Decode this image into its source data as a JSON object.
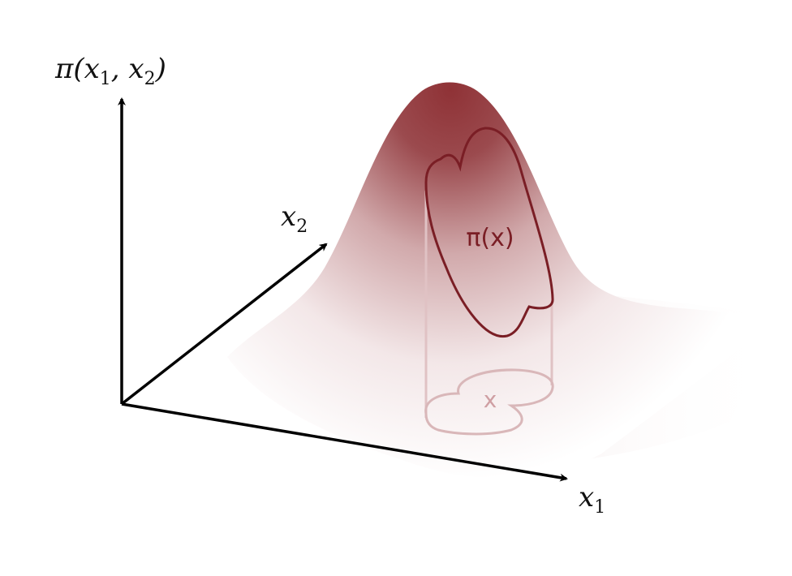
{
  "axes": {
    "vertical": {
      "label_main": "π(x",
      "label_sub1": "1",
      "label_mid": ", x",
      "label_sub2": "2",
      "label_end": ")"
    },
    "depth": {
      "label_main": "x",
      "label_sub": "2"
    },
    "horizontal": {
      "label_main": "x",
      "label_sub": "1"
    }
  },
  "region": {
    "surface_label": "π(x)",
    "base_label": "x"
  },
  "colors": {
    "surface_peak": "#8f3236",
    "surface_fade": "#ffffff",
    "curve": "#7a1e25",
    "base_curve": "#d9b7b9",
    "base_label": "#cf9fa3",
    "axis": "#000000"
  }
}
